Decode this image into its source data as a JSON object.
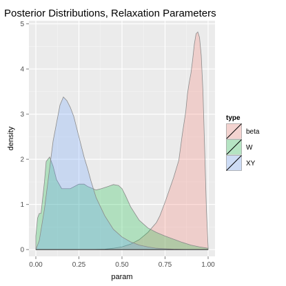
{
  "chart_data": {
    "type": "area",
    "title": "Posterior Distributions, Relaxation Parameters",
    "xlabel": "param",
    "ylabel": "density",
    "xlim": [
      -0.04,
      1.04
    ],
    "ylim": [
      -0.15,
      5.07
    ],
    "xticks": [
      0.0,
      0.25,
      0.5,
      0.75,
      1.0
    ],
    "xtick_labels": [
      "0.00",
      "0.25",
      "0.50",
      "0.75",
      "1.00"
    ],
    "yticks": [
      0,
      1,
      2,
      3,
      4,
      5
    ],
    "ytick_labels": [
      "0",
      "1",
      "2",
      "3",
      "4",
      "5"
    ],
    "grid": true,
    "legend_position": "right",
    "legend_title": "type",
    "colors": {
      "panel_background": "#ebebeb",
      "grid_major": "#ffffff",
      "grid_minor": "#f5f5f5",
      "outline": "#8a8a8a",
      "beta": "#f8766d",
      "W": "#00ba38",
      "XY": "#619cff"
    },
    "series": [
      {
        "name": "beta",
        "fill": "#f8766d",
        "x": [
          0.0,
          0.3,
          0.4,
          0.45,
          0.5,
          0.55,
          0.6,
          0.65,
          0.7,
          0.72,
          0.75,
          0.78,
          0.8,
          0.83,
          0.85,
          0.87,
          0.88,
          0.89,
          0.9,
          0.91,
          0.92,
          0.93,
          0.94,
          0.95,
          0.96,
          0.97,
          0.98,
          0.99,
          1.0
        ],
        "y": [
          0.0,
          0.0,
          0.01,
          0.03,
          0.06,
          0.12,
          0.22,
          0.38,
          0.6,
          0.75,
          1.05,
          1.38,
          1.6,
          1.98,
          2.55,
          3.05,
          3.45,
          3.7,
          3.9,
          4.2,
          4.55,
          4.78,
          4.82,
          4.7,
          4.3,
          3.5,
          2.2,
          0.9,
          0.05
        ]
      },
      {
        "name": "W",
        "fill": "#00ba38",
        "x": [
          0.0,
          0.01,
          0.02,
          0.03,
          0.05,
          0.06,
          0.08,
          0.1,
          0.12,
          0.15,
          0.2,
          0.25,
          0.28,
          0.3,
          0.35,
          0.38,
          0.42,
          0.45,
          0.48,
          0.5,
          0.52,
          0.55,
          0.6,
          0.65,
          0.7,
          0.75,
          0.8,
          0.85,
          0.9,
          0.95,
          1.0
        ],
        "y": [
          0.3,
          0.7,
          0.8,
          0.8,
          1.5,
          1.95,
          2.05,
          1.85,
          1.55,
          1.35,
          1.35,
          1.45,
          1.45,
          1.4,
          1.32,
          1.35,
          1.4,
          1.44,
          1.42,
          1.35,
          1.2,
          0.95,
          0.65,
          0.48,
          0.38,
          0.3,
          0.23,
          0.16,
          0.1,
          0.06,
          0.03
        ]
      },
      {
        "name": "XY",
        "fill": "#619cff",
        "x": [
          0.0,
          0.02,
          0.05,
          0.08,
          0.1,
          0.12,
          0.14,
          0.16,
          0.18,
          0.2,
          0.22,
          0.24,
          0.26,
          0.28,
          0.3,
          0.32,
          0.35,
          0.4,
          0.45,
          0.5,
          0.55,
          0.6,
          0.65,
          0.7,
          0.75,
          0.8,
          0.9,
          1.0
        ],
        "y": [
          0.0,
          0.2,
          0.9,
          1.8,
          2.4,
          2.8,
          3.2,
          3.38,
          3.3,
          3.15,
          2.95,
          2.65,
          2.35,
          2.05,
          1.8,
          1.52,
          1.15,
          0.75,
          0.45,
          0.28,
          0.17,
          0.1,
          0.06,
          0.03,
          0.02,
          0.01,
          0.0,
          0.0
        ]
      }
    ]
  }
}
